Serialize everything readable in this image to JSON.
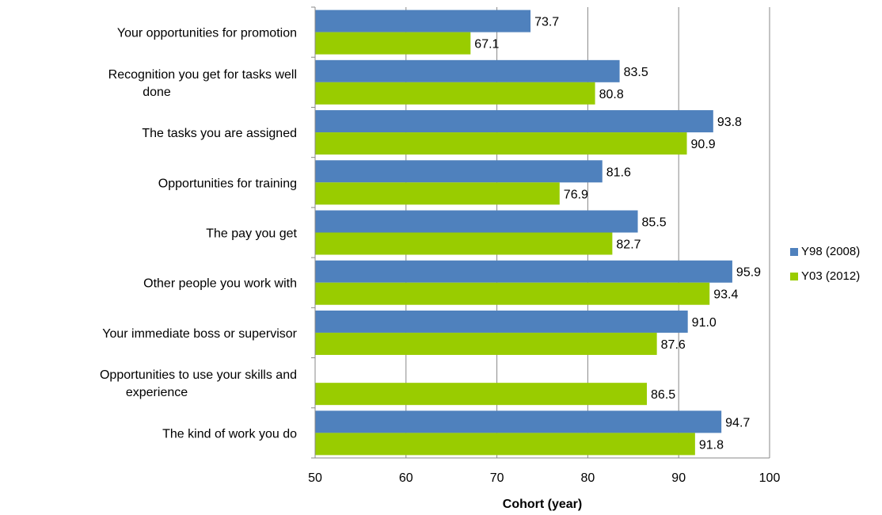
{
  "chart_data": {
    "type": "bar",
    "orientation": "horizontal",
    "title": "",
    "xlabel": "Cohort (year)",
    "ylabel": "",
    "xlim": [
      50,
      100
    ],
    "x_ticks": [
      50,
      60,
      70,
      80,
      90,
      100
    ],
    "grid": "vertical",
    "legend_position": "right",
    "categories": [
      "Your opportunities for promotion",
      "Recognition you get for tasks well done",
      "The tasks you are assigned",
      "Opportunities for training",
      "The pay you get",
      "Other people you work with",
      "Your immediate boss or supervisor",
      "Opportunities to use your skills and experience",
      "The kind of work you do"
    ],
    "series": [
      {
        "name": "Y98 (2008)",
        "color": "#4f81bd",
        "values": [
          73.7,
          83.5,
          93.8,
          81.6,
          85.5,
          95.9,
          91.0,
          null,
          94.7
        ],
        "labels": [
          "73.7",
          "83.5",
          "93.8",
          "81.6",
          "85.5",
          "95.9",
          "91.0",
          "",
          "94.7"
        ]
      },
      {
        "name": "Y03 (2012)",
        "color": "#99cc00",
        "values": [
          67.1,
          80.8,
          90.9,
          76.9,
          82.7,
          93.4,
          87.6,
          86.5,
          91.8
        ],
        "labels": [
          "67.1",
          "80.8",
          "90.9",
          "76.9",
          "82.7",
          "93.4",
          "87.6",
          "86.5",
          "91.8"
        ]
      }
    ]
  }
}
